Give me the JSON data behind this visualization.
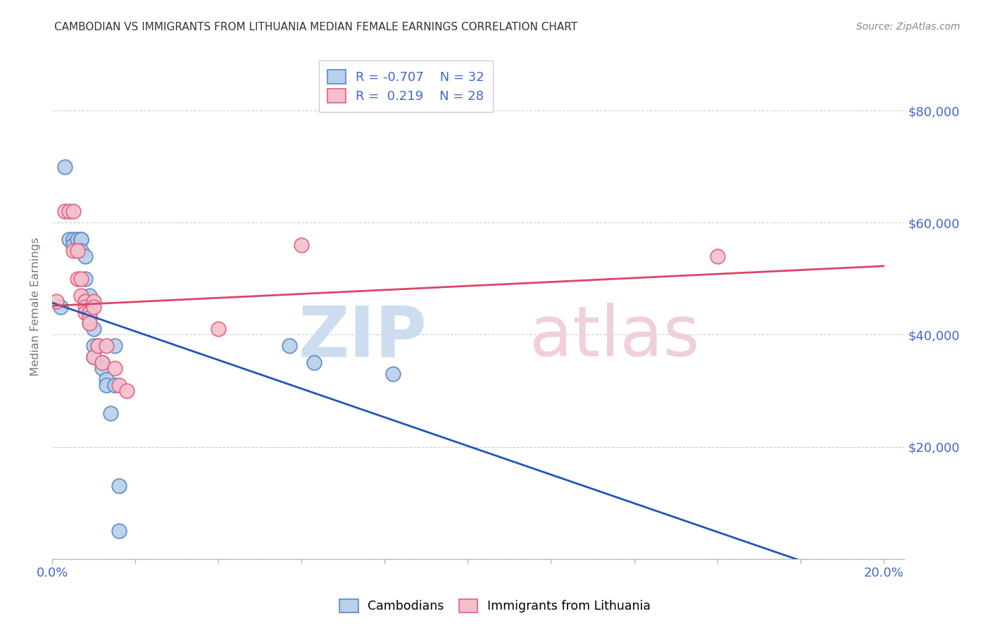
{
  "title": "CAMBODIAN VS IMMIGRANTS FROM LITHUANIA MEDIAN FEMALE EARNINGS CORRELATION CHART",
  "source": "Source: ZipAtlas.com",
  "ylabel": "Median Female Earnings",
  "xlim": [
    0.0,
    0.205
  ],
  "ylim": [
    0,
    90000
  ],
  "ytick_values": [
    0,
    20000,
    40000,
    60000,
    80000
  ],
  "ytick_labels": [
    "",
    "$20,000",
    "$40,000",
    "$60,000",
    "$80,000"
  ],
  "xtick_positions": [
    0.0,
    0.02,
    0.04,
    0.06,
    0.08,
    0.1,
    0.12,
    0.14,
    0.16,
    0.18,
    0.2
  ],
  "xtick_labels": [
    "0.0%",
    "",
    "",
    "",
    "",
    "",
    "",
    "",
    "",
    "",
    "20.0%"
  ],
  "cambodian_color": "#b8d0e8",
  "cambodian_edge_color": "#5588cc",
  "lithuania_color": "#f5c0cc",
  "lithuania_edge_color": "#e06080",
  "blue_line_color": "#2255bb",
  "pink_line_color": "#dd4466",
  "watermark_zip_color": "#ccddf0",
  "watermark_atlas_color": "#f0d0d8",
  "background_color": "#ffffff",
  "grid_color": "#cccccc",
  "title_color": "#333333",
  "source_color": "#888888",
  "axis_label_color": "#777777",
  "right_tick_color": "#4466cc",
  "legend_text_color": "#4466cc",
  "cambodian_x": [
    0.002,
    0.003,
    0.004,
    0.005,
    0.005,
    0.006,
    0.007,
    0.007,
    0.007,
    0.008,
    0.008,
    0.008,
    0.009,
    0.009,
    0.009,
    0.009,
    0.01,
    0.01,
    0.01,
    0.011,
    0.012,
    0.012,
    0.013,
    0.013,
    0.014,
    0.015,
    0.015,
    0.016,
    0.016,
    0.057,
    0.063,
    0.082
  ],
  "cambodian_y": [
    45000,
    70000,
    57000,
    57000,
    56000,
    57000,
    57000,
    57000,
    55000,
    54000,
    50000,
    46000,
    47000,
    44000,
    43000,
    42000,
    41000,
    38000,
    36000,
    38000,
    35000,
    34000,
    32000,
    31000,
    26000,
    38000,
    31000,
    13000,
    5000,
    38000,
    35000,
    33000
  ],
  "lithuania_x": [
    0.001,
    0.003,
    0.004,
    0.005,
    0.005,
    0.006,
    0.006,
    0.007,
    0.007,
    0.008,
    0.008,
    0.008,
    0.009,
    0.009,
    0.009,
    0.009,
    0.01,
    0.01,
    0.01,
    0.011,
    0.012,
    0.013,
    0.015,
    0.016,
    0.018,
    0.04,
    0.06,
    0.16
  ],
  "lithuania_y": [
    46000,
    62000,
    62000,
    62000,
    55000,
    55000,
    50000,
    50000,
    47000,
    46000,
    45000,
    44000,
    44000,
    44000,
    43000,
    42000,
    46000,
    45000,
    36000,
    38000,
    35000,
    38000,
    34000,
    31000,
    30000,
    41000,
    56000,
    54000
  ]
}
